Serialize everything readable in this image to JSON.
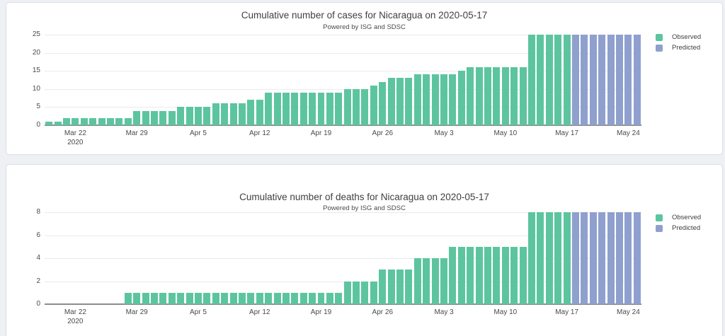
{
  "colors": {
    "page_bg": "#eef0f4",
    "panel_bg": "#ffffff",
    "panel_border": "#d9dfe9",
    "grid": "#e8eaec",
    "zero_line": "#8c8c8c",
    "tick_text": "#4a4a4a",
    "title_text": "#3f3f3f",
    "observed": "#5cc5a0",
    "predicted": "#8fa0ce"
  },
  "chart_data": [
    {
      "type": "bar",
      "title": "Cumulative number of cases for Nicaragua on 2020-05-17",
      "subtitle": "Powered by ISG and SDSC",
      "xlabel": "",
      "ylabel": "",
      "ylim": [
        0,
        25
      ],
      "yticks": [
        0,
        5,
        10,
        15,
        20,
        25
      ],
      "grid": true,
      "legend_position": "top-right",
      "x": [
        "2020-03-19",
        "2020-03-20",
        "2020-03-21",
        "2020-03-22",
        "2020-03-23",
        "2020-03-24",
        "2020-03-25",
        "2020-03-26",
        "2020-03-27",
        "2020-03-28",
        "2020-03-29",
        "2020-03-30",
        "2020-03-31",
        "2020-04-01",
        "2020-04-02",
        "2020-04-03",
        "2020-04-04",
        "2020-04-05",
        "2020-04-06",
        "2020-04-07",
        "2020-04-08",
        "2020-04-09",
        "2020-04-10",
        "2020-04-11",
        "2020-04-12",
        "2020-04-13",
        "2020-04-14",
        "2020-04-15",
        "2020-04-16",
        "2020-04-17",
        "2020-04-18",
        "2020-04-19",
        "2020-04-20",
        "2020-04-21",
        "2020-04-22",
        "2020-04-23",
        "2020-04-24",
        "2020-04-25",
        "2020-04-26",
        "2020-04-27",
        "2020-04-28",
        "2020-04-29",
        "2020-04-30",
        "2020-05-01",
        "2020-05-02",
        "2020-05-03",
        "2020-05-04",
        "2020-05-05",
        "2020-05-06",
        "2020-05-07",
        "2020-05-08",
        "2020-05-09",
        "2020-05-10",
        "2020-05-11",
        "2020-05-12",
        "2020-05-13",
        "2020-05-14",
        "2020-05-15",
        "2020-05-16",
        "2020-05-17",
        "2020-05-18",
        "2020-05-19",
        "2020-05-20",
        "2020-05-21",
        "2020-05-22",
        "2020-05-23",
        "2020-05-24",
        "2020-05-25"
      ],
      "series": [
        {
          "name": "Observed",
          "color": "#5cc5a0",
          "start_index": 0,
          "values": [
            1,
            1,
            2,
            2,
            2,
            2,
            2,
            2,
            2,
            2,
            4,
            4,
            4,
            4,
            4,
            5,
            5,
            5,
            5,
            6,
            6,
            6,
            6,
            7,
            7,
            9,
            9,
            9,
            9,
            9,
            9,
            9,
            9,
            9,
            10,
            10,
            10,
            11,
            12,
            13,
            13,
            13,
            14,
            14,
            14,
            14,
            14,
            15,
            16,
            16,
            16,
            16,
            16,
            16,
            16,
            25,
            25,
            25,
            25,
            25
          ]
        },
        {
          "name": "Predicted",
          "color": "#8fa0ce",
          "start_index": 60,
          "values": [
            25,
            25,
            25,
            25,
            25,
            25,
            25,
            25
          ]
        }
      ],
      "xticks": [
        {
          "index": 3,
          "label": "Mar 22",
          "sublabel": "2020"
        },
        {
          "index": 10,
          "label": "Mar 29"
        },
        {
          "index": 17,
          "label": "Apr 5"
        },
        {
          "index": 24,
          "label": "Apr 12"
        },
        {
          "index": 31,
          "label": "Apr 19"
        },
        {
          "index": 38,
          "label": "Apr 26"
        },
        {
          "index": 45,
          "label": "May 3"
        },
        {
          "index": 52,
          "label": "May 10"
        },
        {
          "index": 59,
          "label": "May 17"
        },
        {
          "index": 66,
          "label": "May 24"
        }
      ],
      "legend": [
        "Observed",
        "Predicted"
      ]
    },
    {
      "type": "bar",
      "title": "Cumulative number of deaths for Nicaragua on 2020-05-17",
      "subtitle": "Powered by ISG and SDSC",
      "xlabel": "",
      "ylabel": "",
      "ylim": [
        0,
        8
      ],
      "yticks": [
        0,
        2,
        4,
        6,
        8
      ],
      "grid": true,
      "legend_position": "top-right",
      "x": [
        "2020-03-19",
        "2020-03-20",
        "2020-03-21",
        "2020-03-22",
        "2020-03-23",
        "2020-03-24",
        "2020-03-25",
        "2020-03-26",
        "2020-03-27",
        "2020-03-28",
        "2020-03-29",
        "2020-03-30",
        "2020-03-31",
        "2020-04-01",
        "2020-04-02",
        "2020-04-03",
        "2020-04-04",
        "2020-04-05",
        "2020-04-06",
        "2020-04-07",
        "2020-04-08",
        "2020-04-09",
        "2020-04-10",
        "2020-04-11",
        "2020-04-12",
        "2020-04-13",
        "2020-04-14",
        "2020-04-15",
        "2020-04-16",
        "2020-04-17",
        "2020-04-18",
        "2020-04-19",
        "2020-04-20",
        "2020-04-21",
        "2020-04-22",
        "2020-04-23",
        "2020-04-24",
        "2020-04-25",
        "2020-04-26",
        "2020-04-27",
        "2020-04-28",
        "2020-04-29",
        "2020-04-30",
        "2020-05-01",
        "2020-05-02",
        "2020-05-03",
        "2020-05-04",
        "2020-05-05",
        "2020-05-06",
        "2020-05-07",
        "2020-05-08",
        "2020-05-09",
        "2020-05-10",
        "2020-05-11",
        "2020-05-12",
        "2020-05-13",
        "2020-05-14",
        "2020-05-15",
        "2020-05-16",
        "2020-05-17",
        "2020-05-18",
        "2020-05-19",
        "2020-05-20",
        "2020-05-21",
        "2020-05-22",
        "2020-05-23",
        "2020-05-24",
        "2020-05-25"
      ],
      "series": [
        {
          "name": "Observed",
          "color": "#5cc5a0",
          "start_index": 0,
          "values": [
            0,
            0,
            0,
            0,
            0,
            0,
            0,
            0,
            0,
            1,
            1,
            1,
            1,
            1,
            1,
            1,
            1,
            1,
            1,
            1,
            1,
            1,
            1,
            1,
            1,
            1,
            1,
            1,
            1,
            1,
            1,
            1,
            1,
            1,
            2,
            2,
            2,
            2,
            3,
            3,
            3,
            3,
            4,
            4,
            4,
            4,
            5,
            5,
            5,
            5,
            5,
            5,
            5,
            5,
            5,
            8,
            8,
            8,
            8,
            8
          ]
        },
        {
          "name": "Predicted",
          "color": "#8fa0ce",
          "start_index": 60,
          "values": [
            8,
            8,
            8,
            8,
            8,
            8,
            8,
            8
          ]
        }
      ],
      "xticks": [
        {
          "index": 3,
          "label": "Mar 22",
          "sublabel": "2020"
        },
        {
          "index": 10,
          "label": "Mar 29"
        },
        {
          "index": 17,
          "label": "Apr 5"
        },
        {
          "index": 24,
          "label": "Apr 12"
        },
        {
          "index": 31,
          "label": "Apr 19"
        },
        {
          "index": 38,
          "label": "Apr 26"
        },
        {
          "index": 45,
          "label": "May 3"
        },
        {
          "index": 52,
          "label": "May 10"
        },
        {
          "index": 59,
          "label": "May 17"
        },
        {
          "index": 66,
          "label": "May 24"
        }
      ],
      "legend": [
        "Observed",
        "Predicted"
      ]
    }
  ]
}
